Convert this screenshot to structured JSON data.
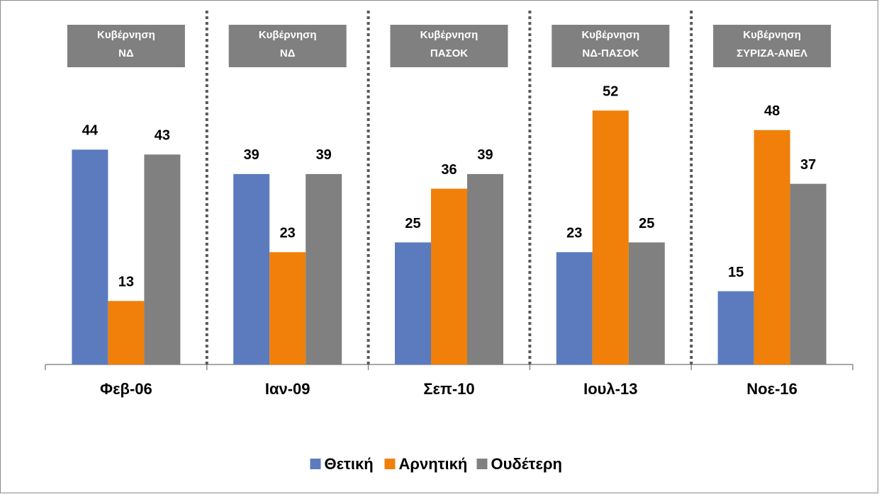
{
  "chart_data": {
    "type": "bar",
    "categories": [
      "Φεβ-06",
      "Ιαν-09",
      "Σεπ-10",
      "Ιουλ-13",
      "Νοε-16"
    ],
    "annotations": [
      [
        "Κυβέρνηση",
        "ΝΔ"
      ],
      [
        "Κυβέρνηση",
        "ΝΔ"
      ],
      [
        "Κυβέρνηση",
        "ΠΑΣΟΚ"
      ],
      [
        "Κυβέρνηση",
        "ΝΔ-ΠΑΣΟΚ"
      ],
      [
        "Κυβέρνηση",
        "ΣΥΡΙΖΑ-ΑΝΕΛ"
      ]
    ],
    "series": [
      {
        "name": "Θετική",
        "color": "#5b7bbe",
        "values": [
          44,
          39,
          25,
          23,
          15
        ]
      },
      {
        "name": "Αρνητική",
        "color": "#f08009",
        "values": [
          13,
          23,
          36,
          52,
          48
        ]
      },
      {
        "name": "Ουδέτερη",
        "color": "#808080",
        "values": [
          43,
          39,
          39,
          25,
          37
        ]
      }
    ],
    "ylim": [
      0,
      60
    ],
    "legend": "bottom",
    "grid": false
  }
}
